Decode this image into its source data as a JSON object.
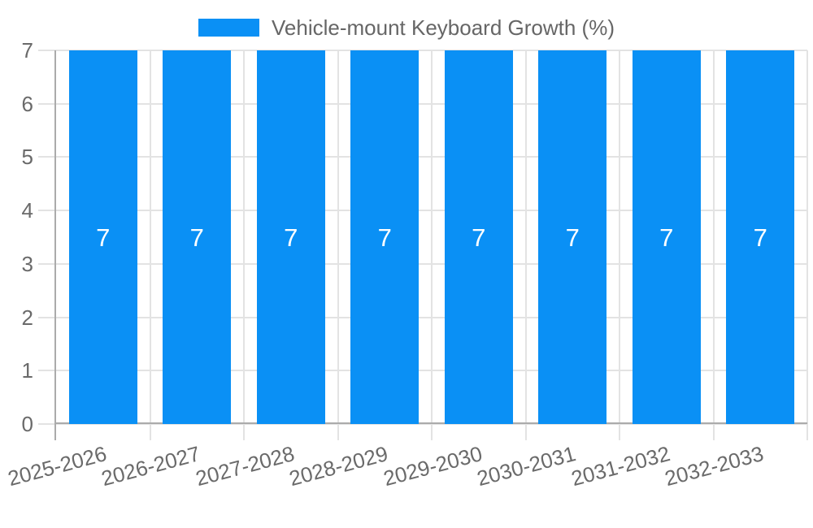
{
  "legend": {
    "label": "Vehicle-mount Keyboard Growth (%)"
  },
  "colors": {
    "background": "#ffffff",
    "bar": "#0a90f5",
    "bar_value_text": "#ffffff",
    "grid": "#e3e3e3",
    "axis": "#ababab",
    "tick_text": "#6a6a6a",
    "legend_text": "#666666"
  },
  "chart_data": {
    "type": "bar",
    "title": "Vehicle-mount Keyboard Growth (%)",
    "categories": [
      "2025-2026",
      "2026-2027",
      "2027-2028",
      "2028-2029",
      "2029-2030",
      "2030-2031",
      "2031-2032",
      "2032-2033"
    ],
    "values": [
      7,
      7,
      7,
      7,
      7,
      7,
      7,
      7
    ],
    "bar_labels": [
      "7",
      "7",
      "7",
      "7",
      "7",
      "7",
      "7",
      "7"
    ],
    "series": [
      {
        "name": "Vehicle-mount Keyboard Growth (%)",
        "values": [
          7,
          7,
          7,
          7,
          7,
          7,
          7,
          7
        ]
      }
    ],
    "xlabel": "",
    "ylabel": "",
    "ylim": [
      0,
      7
    ],
    "yticks": [
      0,
      1,
      2,
      3,
      4,
      5,
      6,
      7
    ],
    "grid": true,
    "legend_position": "top",
    "x_tick_rotation_deg": -15,
    "bar_label_position": "center"
  }
}
